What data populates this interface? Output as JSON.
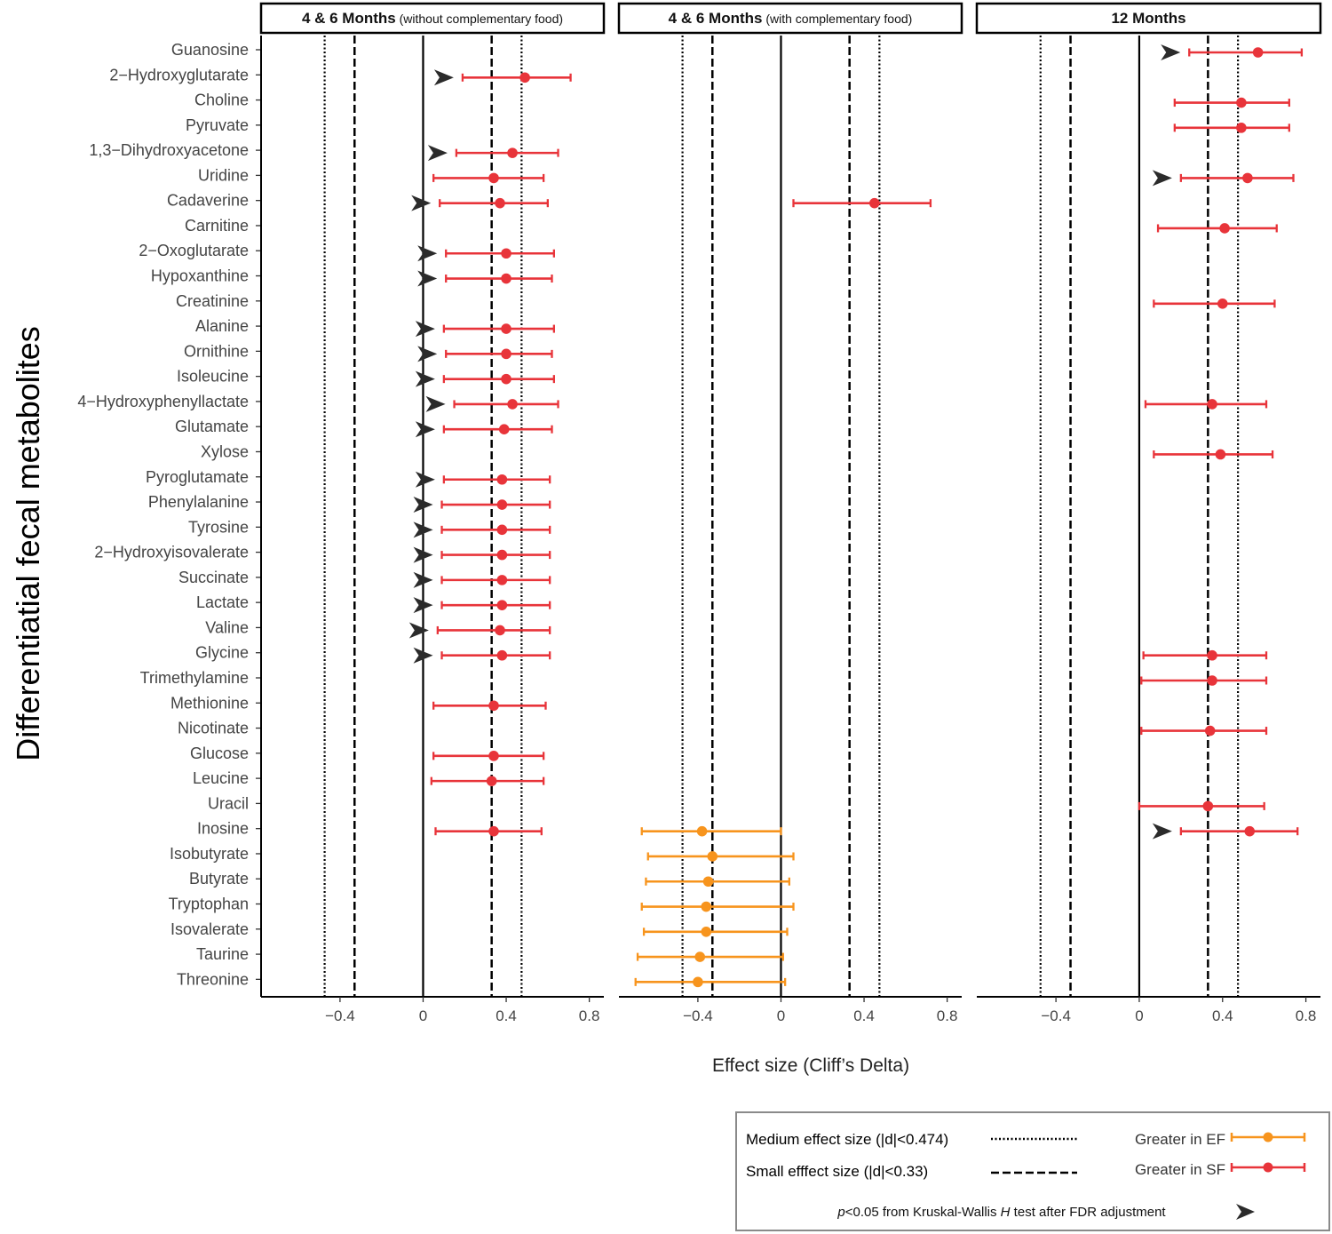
{
  "chart_data": {
    "type": "forest",
    "ylabel": "Differentiatial fecal metabolites",
    "xlabel": "Effect size (Cliff’s Delta)",
    "xlim": [
      -0.78,
      0.87
    ],
    "x_ticks": [
      -0.4,
      0,
      0.4,
      0.8
    ],
    "x_tick_labels": [
      "−0.4",
      "0",
      "0.4",
      "0.8"
    ],
    "reference_lines": [
      {
        "value": -0.474,
        "style": "dotted"
      },
      {
        "value": -0.33,
        "style": "dashed"
      },
      {
        "value": 0,
        "style": "solid"
      },
      {
        "value": 0.33,
        "style": "dashed"
      },
      {
        "value": 0.474,
        "style": "dotted"
      }
    ],
    "metabolites": [
      "Guanosine",
      "2−Hydroxyglutarate",
      "Choline",
      "Pyruvate",
      "1,3−Dihydroxyacetone",
      "Uridine",
      "Cadaverine",
      "Carnitine",
      "2−Oxoglutarate",
      "Hypoxanthine",
      "Creatinine",
      "Alanine",
      "Ornithine",
      "Isoleucine",
      "4−Hydroxyphenyllactate",
      "Glutamate",
      "Xylose",
      "Pyroglutamate",
      "Phenylalanine",
      "Tyrosine",
      "2−Hydroxyisovalerate",
      "Succinate",
      "Lactate",
      "Valine",
      "Glycine",
      "Trimethylamine",
      "Methionine",
      "Nicotinate",
      "Glucose",
      "Leucine",
      "Uracil",
      "Inosine",
      "Isobutyrate",
      "Butyrate",
      "Tryptophan",
      "Isovalerate",
      "Taurine",
      "Threonine"
    ],
    "panels": [
      {
        "title_bold": "4 & 6 Months",
        "title_normal": " (without complementary food)",
        "points": [
          {
            "metabolite": "2−Hydroxyglutarate",
            "est": 0.49,
            "lo": 0.19,
            "hi": 0.71,
            "group": "SF",
            "sig": true
          },
          {
            "metabolite": "1,3−Dihydroxyacetone",
            "est": 0.43,
            "lo": 0.16,
            "hi": 0.65,
            "group": "SF",
            "sig": true
          },
          {
            "metabolite": "Uridine",
            "est": 0.34,
            "lo": 0.05,
            "hi": 0.58,
            "group": "SF",
            "sig": false
          },
          {
            "metabolite": "Cadaverine",
            "est": 0.37,
            "lo": 0.08,
            "hi": 0.6,
            "group": "SF",
            "sig": true
          },
          {
            "metabolite": "2−Oxoglutarate",
            "est": 0.4,
            "lo": 0.11,
            "hi": 0.63,
            "group": "SF",
            "sig": true
          },
          {
            "metabolite": "Hypoxanthine",
            "est": 0.4,
            "lo": 0.11,
            "hi": 0.62,
            "group": "SF",
            "sig": true
          },
          {
            "metabolite": "Alanine",
            "est": 0.4,
            "lo": 0.1,
            "hi": 0.63,
            "group": "SF",
            "sig": true
          },
          {
            "metabolite": "Ornithine",
            "est": 0.4,
            "lo": 0.11,
            "hi": 0.62,
            "group": "SF",
            "sig": true
          },
          {
            "metabolite": "Isoleucine",
            "est": 0.4,
            "lo": 0.1,
            "hi": 0.63,
            "group": "SF",
            "sig": true
          },
          {
            "metabolite": "4−Hydroxyphenyllactate",
            "est": 0.43,
            "lo": 0.15,
            "hi": 0.65,
            "group": "SF",
            "sig": true
          },
          {
            "metabolite": "Glutamate",
            "est": 0.39,
            "lo": 0.1,
            "hi": 0.62,
            "group": "SF",
            "sig": true
          },
          {
            "metabolite": "Pyroglutamate",
            "est": 0.38,
            "lo": 0.1,
            "hi": 0.61,
            "group": "SF",
            "sig": true
          },
          {
            "metabolite": "Phenylalanine",
            "est": 0.38,
            "lo": 0.09,
            "hi": 0.61,
            "group": "SF",
            "sig": true
          },
          {
            "metabolite": "Tyrosine",
            "est": 0.38,
            "lo": 0.09,
            "hi": 0.61,
            "group": "SF",
            "sig": true
          },
          {
            "metabolite": "2−Hydroxyisovalerate",
            "est": 0.38,
            "lo": 0.09,
            "hi": 0.61,
            "group": "SF",
            "sig": true
          },
          {
            "metabolite": "Succinate",
            "est": 0.38,
            "lo": 0.09,
            "hi": 0.61,
            "group": "SF",
            "sig": true
          },
          {
            "metabolite": "Lactate",
            "est": 0.38,
            "lo": 0.09,
            "hi": 0.61,
            "group": "SF",
            "sig": true
          },
          {
            "metabolite": "Valine",
            "est": 0.37,
            "lo": 0.07,
            "hi": 0.61,
            "group": "SF",
            "sig": true
          },
          {
            "metabolite": "Glycine",
            "est": 0.38,
            "lo": 0.09,
            "hi": 0.61,
            "group": "SF",
            "sig": true
          },
          {
            "metabolite": "Methionine",
            "est": 0.34,
            "lo": 0.05,
            "hi": 0.59,
            "group": "SF",
            "sig": false
          },
          {
            "metabolite": "Glucose",
            "est": 0.34,
            "lo": 0.05,
            "hi": 0.58,
            "group": "SF",
            "sig": false
          },
          {
            "metabolite": "Leucine",
            "est": 0.33,
            "lo": 0.04,
            "hi": 0.58,
            "group": "SF",
            "sig": false
          },
          {
            "metabolite": "Inosine",
            "est": 0.34,
            "lo": 0.06,
            "hi": 0.57,
            "group": "SF",
            "sig": false
          }
        ]
      },
      {
        "title_bold": "4 & 6 Months",
        "title_normal": " (with complementary food)",
        "points": [
          {
            "metabolite": "Cadaverine",
            "est": 0.45,
            "lo": 0.06,
            "hi": 0.72,
            "group": "SF",
            "sig": false
          },
          {
            "metabolite": "Inosine",
            "est": -0.38,
            "lo": -0.67,
            "hi": 0.0,
            "group": "EF",
            "sig": false
          },
          {
            "metabolite": "Isobutyrate",
            "est": -0.33,
            "lo": -0.64,
            "hi": 0.06,
            "group": "EF",
            "sig": false
          },
          {
            "metabolite": "Butyrate",
            "est": -0.35,
            "lo": -0.65,
            "hi": 0.04,
            "group": "EF",
            "sig": false
          },
          {
            "metabolite": "Tryptophan",
            "est": -0.36,
            "lo": -0.67,
            "hi": 0.06,
            "group": "EF",
            "sig": false
          },
          {
            "metabolite": "Isovalerate",
            "est": -0.36,
            "lo": -0.66,
            "hi": 0.03,
            "group": "EF",
            "sig": false
          },
          {
            "metabolite": "Taurine",
            "est": -0.39,
            "lo": -0.69,
            "hi": 0.01,
            "group": "EF",
            "sig": false
          },
          {
            "metabolite": "Threonine",
            "est": -0.4,
            "lo": -0.7,
            "hi": 0.02,
            "group": "EF",
            "sig": false
          }
        ]
      },
      {
        "title_bold": "12 Months",
        "title_normal": "",
        "points": [
          {
            "metabolite": "Guanosine",
            "est": 0.57,
            "lo": 0.24,
            "hi": 0.78,
            "group": "SF",
            "sig": true
          },
          {
            "metabolite": "Choline",
            "est": 0.49,
            "lo": 0.17,
            "hi": 0.72,
            "group": "SF",
            "sig": false
          },
          {
            "metabolite": "Pyruvate",
            "est": 0.49,
            "lo": 0.17,
            "hi": 0.72,
            "group": "SF",
            "sig": false
          },
          {
            "metabolite": "Uridine",
            "est": 0.52,
            "lo": 0.2,
            "hi": 0.74,
            "group": "SF",
            "sig": true
          },
          {
            "metabolite": "Carnitine",
            "est": 0.41,
            "lo": 0.09,
            "hi": 0.66,
            "group": "SF",
            "sig": false
          },
          {
            "metabolite": "Creatinine",
            "est": 0.4,
            "lo": 0.07,
            "hi": 0.65,
            "group": "SF",
            "sig": false
          },
          {
            "metabolite": "4−Hydroxyphenyllactate",
            "est": 0.35,
            "lo": 0.03,
            "hi": 0.61,
            "group": "SF",
            "sig": false
          },
          {
            "metabolite": "Xylose",
            "est": 0.39,
            "lo": 0.07,
            "hi": 0.64,
            "group": "SF",
            "sig": false
          },
          {
            "metabolite": "Glycine",
            "est": 0.35,
            "lo": 0.02,
            "hi": 0.61,
            "group": "SF",
            "sig": false
          },
          {
            "metabolite": "Trimethylamine",
            "est": 0.35,
            "lo": 0.01,
            "hi": 0.61,
            "group": "SF",
            "sig": false
          },
          {
            "metabolite": "Nicotinate",
            "est": 0.34,
            "lo": 0.01,
            "hi": 0.61,
            "group": "SF",
            "sig": false
          },
          {
            "metabolite": "Uracil",
            "est": 0.33,
            "lo": 0.0,
            "hi": 0.6,
            "group": "SF",
            "sig": false
          },
          {
            "metabolite": "Inosine",
            "est": 0.53,
            "lo": 0.2,
            "hi": 0.76,
            "group": "SF",
            "sig": true
          }
        ]
      }
    ],
    "colors": {
      "EF": "#f7941d",
      "SF": "#e8343a",
      "arrow": "#2b2b2b",
      "axis": "#000000",
      "text": "#444444"
    },
    "legend": {
      "medium": "Medium effect size (|d|<0.474)",
      "small": "Small efffect size (|d|<0.33)",
      "ef": "Greater in EF",
      "sf": "Greater in SF",
      "sig_p": "p",
      "sig_mid": "<0.05 from Kruskal-Wallis ",
      "sig_h": "H",
      "sig_end": " test after FDR adjustment"
    }
  }
}
